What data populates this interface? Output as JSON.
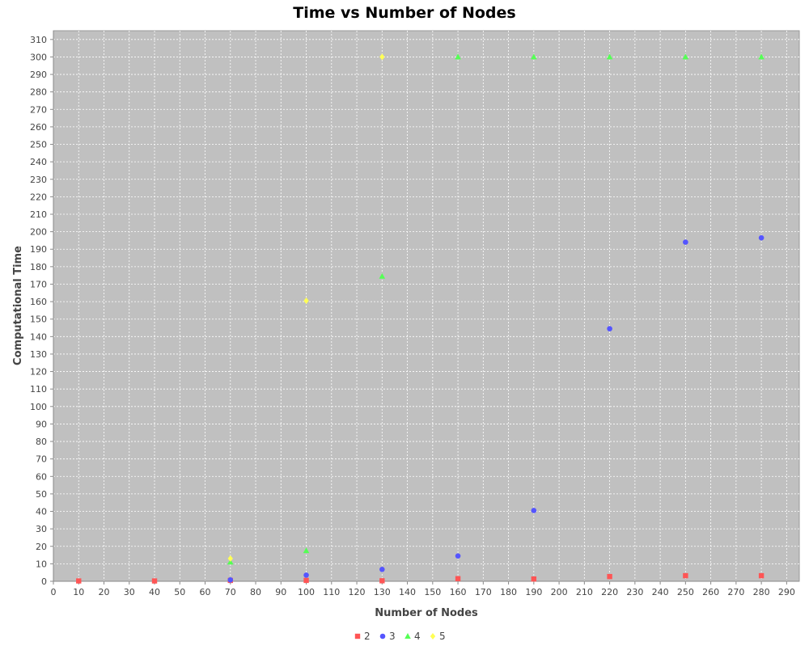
{
  "chart_data": {
    "type": "scatter",
    "title": "Time vs Number of Nodes",
    "xlabel": "Number of Nodes",
    "ylabel": "Computational Time",
    "xlim": [
      0,
      295
    ],
    "ylim": [
      0,
      315
    ],
    "xticks": [
      0,
      10,
      20,
      30,
      40,
      50,
      60,
      70,
      80,
      90,
      100,
      110,
      120,
      130,
      140,
      150,
      160,
      170,
      180,
      190,
      200,
      210,
      220,
      230,
      240,
      250,
      260,
      270,
      280,
      290
    ],
    "yticks": [
      0,
      10,
      20,
      30,
      40,
      50,
      60,
      70,
      80,
      90,
      100,
      110,
      120,
      130,
      140,
      150,
      160,
      170,
      180,
      190,
      200,
      210,
      220,
      230,
      240,
      250,
      260,
      270,
      280,
      290,
      300,
      310
    ],
    "grid": true,
    "legend_position": "bottom",
    "series": [
      {
        "name": "2",
        "color": "#ff5555",
        "marker": "square",
        "points": [
          {
            "x": 10,
            "y": 0.2
          },
          {
            "x": 40,
            "y": 0.2
          },
          {
            "x": 70,
            "y": 0.5
          },
          {
            "x": 100,
            "y": 0.5
          },
          {
            "x": 130,
            "y": 0.3
          },
          {
            "x": 160,
            "y": 1.5
          },
          {
            "x": 190,
            "y": 1.3
          },
          {
            "x": 220,
            "y": 2.7
          },
          {
            "x": 250,
            "y": 3.2
          },
          {
            "x": 280,
            "y": 3.2
          }
        ]
      },
      {
        "name": "3",
        "color": "#5555ff",
        "marker": "circle",
        "points": [
          {
            "x": 70,
            "y": 0.8
          },
          {
            "x": 100,
            "y": 3.5
          },
          {
            "x": 130,
            "y": 6.8
          },
          {
            "x": 160,
            "y": 14.5
          },
          {
            "x": 190,
            "y": 40.5
          },
          {
            "x": 220,
            "y": 144.5
          },
          {
            "x": 250,
            "y": 194
          },
          {
            "x": 280,
            "y": 196.5
          }
        ]
      },
      {
        "name": "4",
        "color": "#55ff55",
        "marker": "triangle",
        "points": [
          {
            "x": 70,
            "y": 11
          },
          {
            "x": 100,
            "y": 17.5
          },
          {
            "x": 130,
            "y": 174.5
          },
          {
            "x": 160,
            "y": 300
          },
          {
            "x": 190,
            "y": 300
          },
          {
            "x": 220,
            "y": 300
          },
          {
            "x": 250,
            "y": 300
          },
          {
            "x": 280,
            "y": 300
          }
        ]
      },
      {
        "name": "5",
        "color": "#ffff55",
        "marker": "diamond",
        "points": [
          {
            "x": 70,
            "y": 13
          },
          {
            "x": 100,
            "y": 160.5
          },
          {
            "x": 130,
            "y": 300
          }
        ]
      }
    ]
  }
}
